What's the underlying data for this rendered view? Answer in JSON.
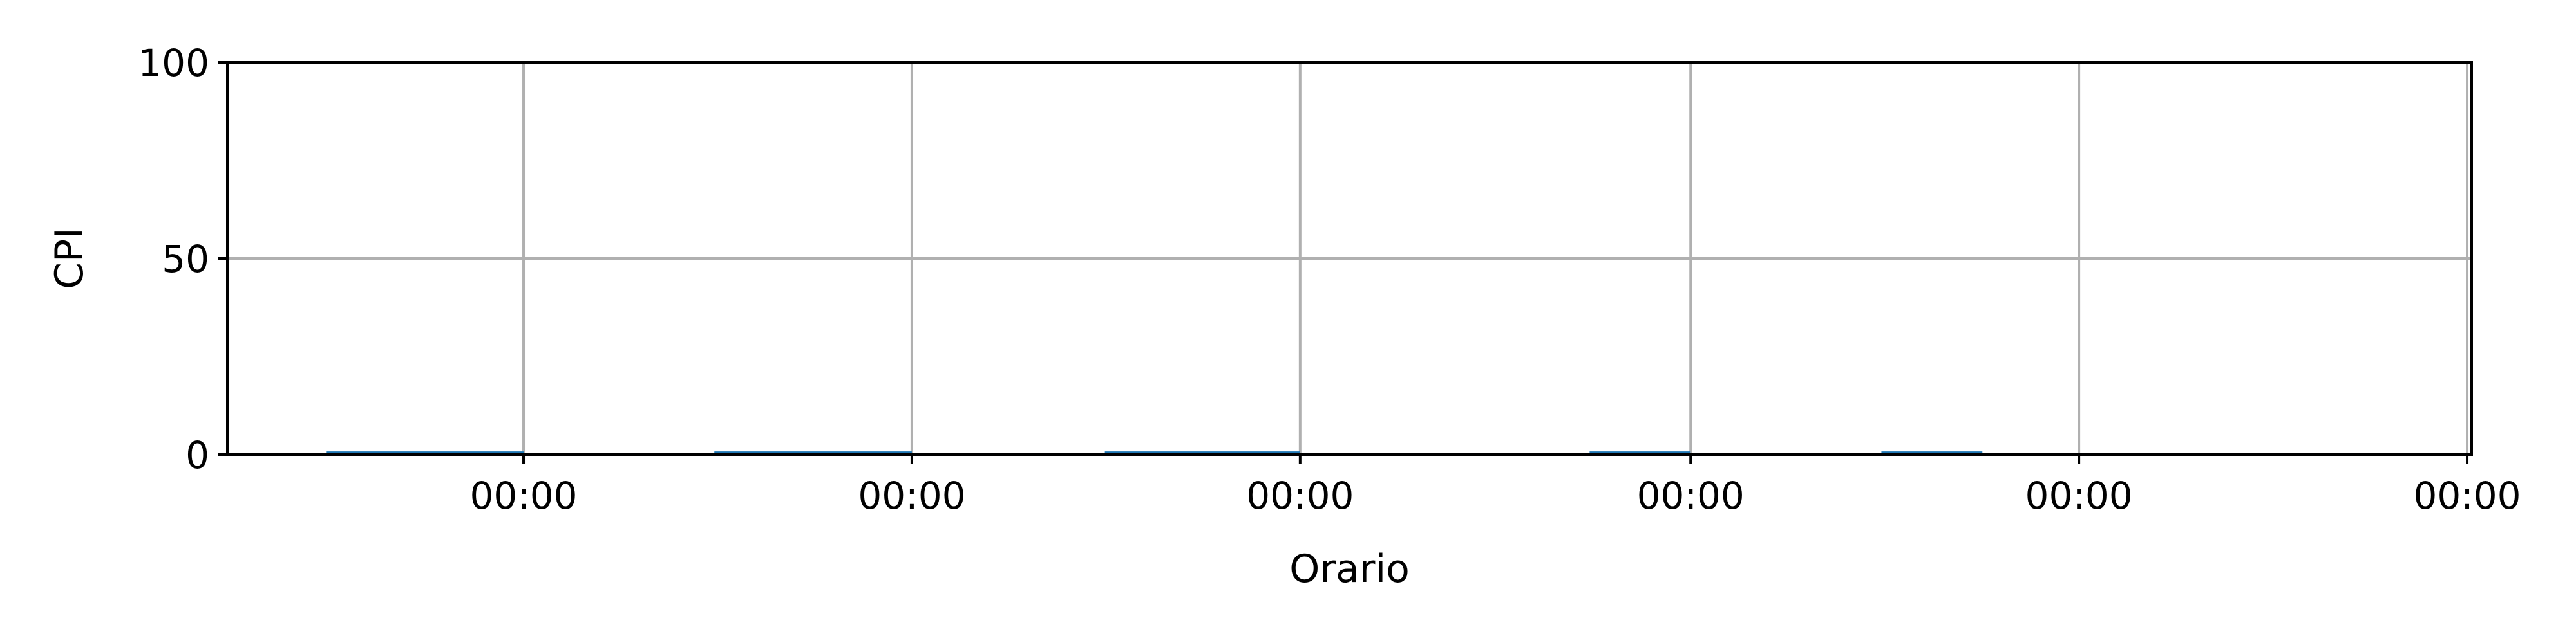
{
  "chart_data": {
    "type": "bar",
    "title": "",
    "xlabel": "Orario",
    "ylabel": "CPI",
    "ylim": [
      0,
      100
    ],
    "xlim": [
      0,
      1
    ],
    "yticks": [
      0,
      50,
      100
    ],
    "ytick_labels": [
      "0",
      "50",
      "100"
    ],
    "xtick_positions": [
      0.132,
      0.305,
      0.478,
      0.652,
      0.825,
      0.998
    ],
    "xtick_labels": [
      "00:00",
      "00:00",
      "00:00",
      "00:00",
      "00:00",
      "00:00"
    ],
    "grid": true,
    "legend": "none",
    "series": [
      {
        "bars": [
          {
            "x_start": 0.044,
            "x_end": 0.132,
            "value": 0.8
          },
          {
            "x_start": 0.217,
            "x_end": 0.305,
            "value": 0.8
          },
          {
            "x_start": 0.391,
            "x_end": 0.478,
            "value": 0.8
          },
          {
            "x_start": 0.607,
            "x_end": 0.652,
            "value": 0.8
          },
          {
            "x_start": 0.737,
            "x_end": 0.782,
            "value": 0.8
          }
        ]
      }
    ],
    "colors": {
      "bar": "#1f77b4",
      "grid": "#b0b0b0",
      "axis": "#000000"
    }
  }
}
